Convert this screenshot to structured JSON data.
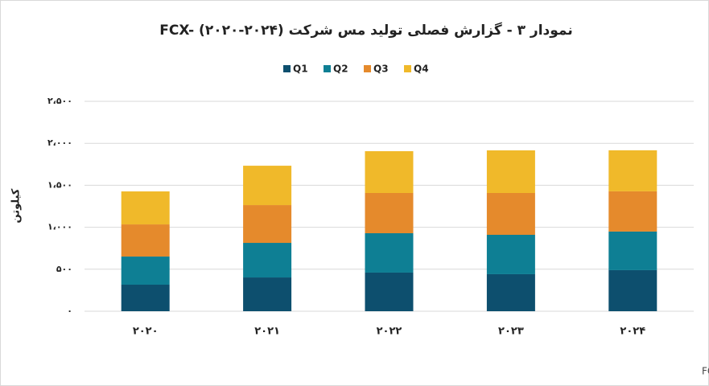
{
  "chart_data": {
    "type": "stacked-bar",
    "title": "نمودار ۳ - گزارش فصلی تولید مس شرکت FCX- (۲۰۲۰-۲۰۲۴)",
    "y_label": "کیلوتن",
    "source": "گزارشات سالانه رسمی شرکت FCX",
    "categories": [
      "۲۰۲۰",
      "۲۰۲۱",
      "۲۰۲۲",
      "۲۰۲۳",
      "۲۰۲۴"
    ],
    "series": [
      {
        "name": "Q1",
        "color": "#0d4f6e",
        "values": [
          316,
          402,
          460,
          441,
          489
        ]
      },
      {
        "name": "Q2",
        "color": "#0e7f94",
        "values": [
          335,
          412,
          469,
          469,
          460
        ]
      },
      {
        "name": "Q3",
        "color": "#e58a2c",
        "values": [
          383,
          450,
          479,
          498,
          479
        ]
      },
      {
        "name": "Q4",
        "color": "#f0b92a",
        "values": [
          393,
          469,
          498,
          508,
          489
        ]
      }
    ],
    "ylim": [
      0,
      2500
    ],
    "yticks": [
      {
        "value": 0,
        "label": "۰"
      },
      {
        "value": 500,
        "label": "۵۰۰"
      },
      {
        "value": 1000,
        "label": "۱،۰۰۰"
      },
      {
        "value": 1500,
        "label": "۱،۵۰۰"
      },
      {
        "value": 2000,
        "label": "۲،۰۰۰"
      },
      {
        "value": 2500,
        "label": "۲،۵۰۰"
      }
    ],
    "grid": true
  }
}
